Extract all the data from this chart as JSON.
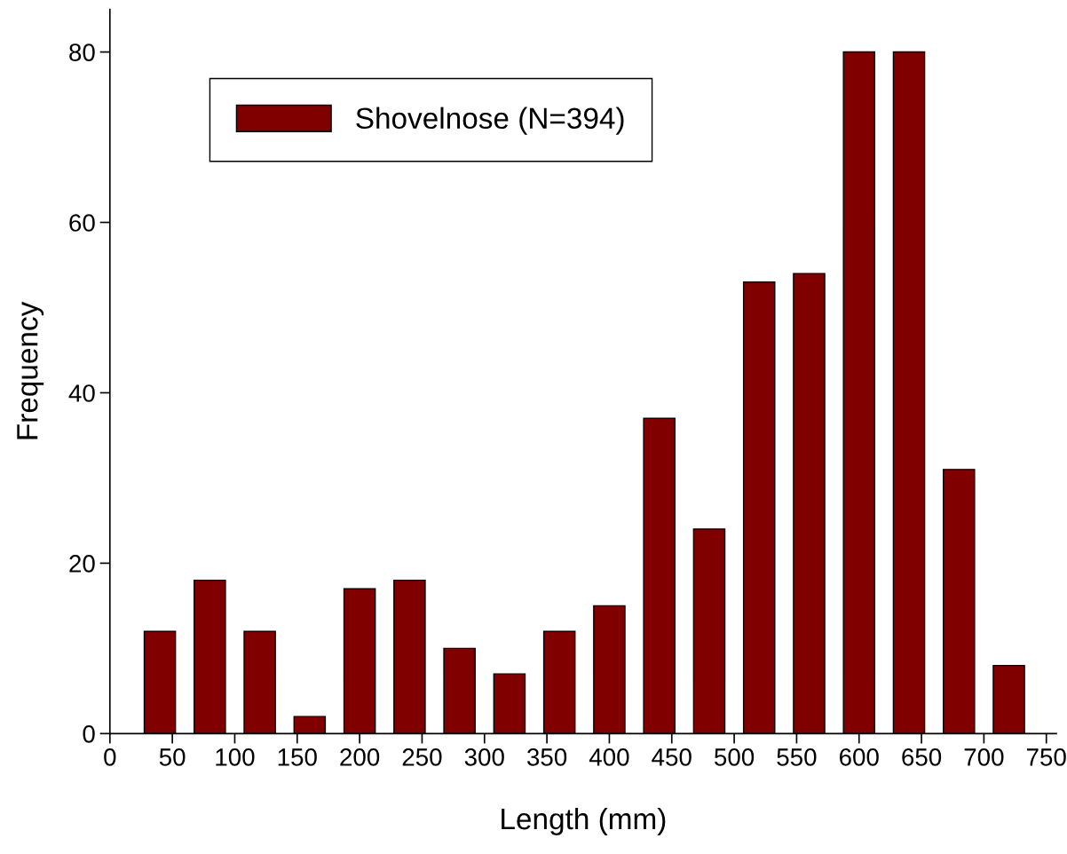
{
  "chart_data": {
    "type": "bar",
    "xlabel": "Length (mm)",
    "ylabel": "Frequency",
    "x": [
      40,
      80,
      120,
      160,
      200,
      240,
      280,
      320,
      360,
      400,
      440,
      480,
      520,
      560,
      600,
      640,
      680,
      720
    ],
    "series": [
      {
        "name": "Shovelnose (N=394)",
        "color": "#800000",
        "values": [
          12,
          18,
          12,
          2,
          17,
          18,
          10,
          7,
          12,
          15,
          37,
          24,
          53,
          54,
          80,
          80,
          31,
          8
        ]
      }
    ],
    "xlim": [
      0,
      758
    ],
    "xticks": [
      0,
      50,
      100,
      150,
      200,
      250,
      300,
      350,
      400,
      450,
      500,
      550,
      600,
      650,
      700,
      750
    ],
    "ylim": [
      0,
      85
    ],
    "yticks": [
      0,
      20,
      40,
      60,
      80
    ],
    "grid": false,
    "legend": "top left"
  }
}
